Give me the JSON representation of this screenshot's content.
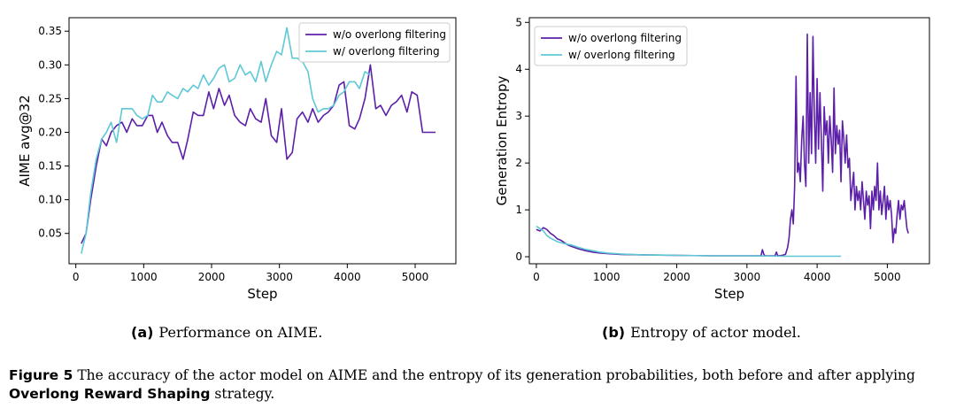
{
  "chart_data": [
    {
      "type": "line",
      "ylabel": "AIME avg@32",
      "xlabel": "Step",
      "xlim": [
        -100,
        5600
      ],
      "ylim": [
        0.005,
        0.37
      ],
      "xticks": [
        0,
        1000,
        2000,
        3000,
        4000,
        5000
      ],
      "yticks": [
        0.05,
        0.1,
        0.15,
        0.2,
        0.25,
        0.3,
        0.35
      ],
      "ytick_labels": [
        "0.05",
        "0.10",
        "0.15",
        "0.20",
        "0.25",
        "0.30",
        "0.35"
      ],
      "legend_loc": "top-right",
      "series": [
        {
          "name": "w/o overlong filtering",
          "color": "#5b1fa8",
          "x": [
            80,
            150,
            220,
            300,
            380,
            450,
            520,
            600,
            680,
            750,
            830,
            900,
            980,
            1060,
            1130,
            1200,
            1270,
            1350,
            1420,
            1500,
            1580,
            1650,
            1730,
            1800,
            1880,
            1960,
            2030,
            2110,
            2190,
            2260,
            2340,
            2420,
            2500,
            2570,
            2650,
            2730,
            2800,
            2880,
            2960,
            3030,
            3110,
            3190,
            3260,
            3340,
            3420,
            3490,
            3570,
            3650,
            3720,
            3800,
            3880,
            3950,
            4030,
            4110,
            4180,
            4260,
            4340,
            4420,
            4490,
            4570,
            4650,
            4720,
            4800,
            4880,
            4950,
            5030,
            5110,
            5180,
            5250,
            5300
          ],
          "y": [
            0.035,
            0.05,
            0.1,
            0.15,
            0.19,
            0.18,
            0.2,
            0.21,
            0.215,
            0.2,
            0.22,
            0.21,
            0.21,
            0.225,
            0.225,
            0.2,
            0.215,
            0.195,
            0.185,
            0.185,
            0.16,
            0.19,
            0.23,
            0.225,
            0.225,
            0.26,
            0.235,
            0.265,
            0.24,
            0.255,
            0.225,
            0.215,
            0.21,
            0.235,
            0.22,
            0.215,
            0.25,
            0.195,
            0.185,
            0.235,
            0.16,
            0.17,
            0.22,
            0.23,
            0.215,
            0.235,
            0.215,
            0.225,
            0.23,
            0.24,
            0.27,
            0.275,
            0.21,
            0.205,
            0.22,
            0.25,
            0.3,
            0.235,
            0.24,
            0.225,
            0.24,
            0.245,
            0.255,
            0.23,
            0.26,
            0.255,
            0.2,
            0.2,
            0.2,
            0.2
          ]
        },
        {
          "name": "w/ overlong filtering",
          "color": "#5ec8d6",
          "x": [
            80,
            150,
            220,
            300,
            380,
            450,
            520,
            600,
            680,
            750,
            830,
            900,
            980,
            1060,
            1130,
            1200,
            1270,
            1350,
            1420,
            1500,
            1580,
            1650,
            1730,
            1800,
            1880,
            1960,
            2030,
            2110,
            2190,
            2260,
            2340,
            2420,
            2500,
            2570,
            2650,
            2730,
            2800,
            2880,
            2960,
            3030,
            3110,
            3190,
            3260,
            3340,
            3420,
            3490,
            3570,
            3650,
            3720,
            3800,
            3880,
            3950,
            4030,
            4110,
            4180,
            4260,
            4340
          ],
          "y": [
            0.02,
            0.05,
            0.11,
            0.16,
            0.19,
            0.2,
            0.215,
            0.185,
            0.235,
            0.235,
            0.235,
            0.225,
            0.22,
            0.225,
            0.255,
            0.245,
            0.245,
            0.26,
            0.255,
            0.25,
            0.265,
            0.26,
            0.27,
            0.265,
            0.285,
            0.27,
            0.28,
            0.295,
            0.3,
            0.275,
            0.28,
            0.3,
            0.285,
            0.29,
            0.275,
            0.305,
            0.275,
            0.3,
            0.32,
            0.315,
            0.355,
            0.31,
            0.31,
            0.305,
            0.29,
            0.25,
            0.23,
            0.235,
            0.235,
            0.24,
            0.255,
            0.26,
            0.275,
            0.275,
            0.265,
            0.29,
            0.285
          ]
        }
      ]
    },
    {
      "type": "line",
      "ylabel": "Generation Entropy",
      "xlabel": "Step",
      "xlim": [
        -100,
        5600
      ],
      "ylim": [
        -0.15,
        5.1
      ],
      "xticks": [
        0,
        1000,
        2000,
        3000,
        4000,
        5000
      ],
      "yticks": [
        0,
        1,
        2,
        3,
        4,
        5
      ],
      "ytick_labels": [
        "0",
        "1",
        "2",
        "3",
        "4",
        "5"
      ],
      "legend_loc": "top-left",
      "series": [
        {
          "name": "w/o overlong filtering",
          "color": "#5b1fa8",
          "x": [
            0,
            50,
            100,
            150,
            200,
            250,
            300,
            350,
            400,
            450,
            500,
            600,
            700,
            800,
            900,
            1000,
            1200,
            1500,
            2000,
            2500,
            3000,
            3200,
            3220,
            3240,
            3260,
            3400,
            3420,
            3440,
            3500,
            3550,
            3580,
            3600,
            3620,
            3640,
            3660,
            3680,
            3700,
            3720,
            3740,
            3760,
            3780,
            3800,
            3820,
            3840,
            3860,
            3880,
            3900,
            3920,
            3940,
            3960,
            3980,
            4000,
            4020,
            4040,
            4060,
            4080,
            4100,
            4120,
            4140,
            4160,
            4180,
            4200,
            4220,
            4240,
            4260,
            4280,
            4300,
            4320,
            4340,
            4360,
            4380,
            4400,
            4420,
            4440,
            4460,
            4480,
            4500,
            4520,
            4540,
            4560,
            4580,
            4600,
            4620,
            4640,
            4660,
            4680,
            4700,
            4720,
            4740,
            4760,
            4780,
            4800,
            4820,
            4840,
            4860,
            4880,
            4900,
            4920,
            4940,
            4960,
            4980,
            5000,
            5020,
            5040,
            5060,
            5080,
            5100,
            5120,
            5140,
            5160,
            5180,
            5200,
            5220,
            5240,
            5260,
            5280,
            5300
          ],
          "y": [
            0.58,
            0.55,
            0.62,
            0.58,
            0.5,
            0.45,
            0.38,
            0.35,
            0.3,
            0.25,
            0.22,
            0.17,
            0.13,
            0.1,
            0.08,
            0.07,
            0.05,
            0.04,
            0.03,
            0.02,
            0.02,
            0.02,
            0.15,
            0.05,
            0.02,
            0.02,
            0.1,
            0.02,
            0.03,
            0.05,
            0.2,
            0.4,
            0.8,
            1.0,
            0.7,
            1.5,
            3.85,
            1.8,
            2.0,
            1.6,
            2.5,
            3.0,
            2.0,
            1.5,
            4.75,
            2.0,
            3.5,
            2.2,
            4.7,
            3.0,
            2.0,
            3.8,
            2.3,
            3.5,
            2.5,
            1.4,
            3.2,
            2.6,
            2.9,
            2.0,
            3.0,
            2.5,
            1.8,
            3.6,
            2.2,
            2.8,
            2.4,
            2.7,
            1.6,
            2.9,
            2.5,
            2.0,
            2.6,
            1.9,
            2.1,
            1.2,
            1.5,
            1.8,
            1.0,
            1.5,
            1.2,
            1.4,
            1.0,
            1.6,
            1.2,
            0.8,
            1.4,
            1.1,
            1.3,
            0.6,
            1.4,
            1.0,
            1.5,
            1.2,
            2.0,
            1.0,
            1.4,
            0.9,
            1.2,
            1.5,
            0.8,
            1.3,
            1.0,
            1.2,
            0.9,
            0.3,
            0.6,
            0.5,
            0.9,
            1.2,
            0.8,
            1.1,
            1.0,
            1.2,
            0.9,
            0.6,
            0.5
          ]
        },
        {
          "name": "w/ overlong filtering",
          "color": "#5ec8d6",
          "x": [
            0,
            50,
            100,
            150,
            200,
            300,
            400,
            500,
            600,
            700,
            800,
            900,
            1000,
            1200,
            1500,
            2000,
            2500,
            3000,
            3500,
            4000,
            4340
          ],
          "y": [
            0.65,
            0.6,
            0.55,
            0.45,
            0.4,
            0.32,
            0.28,
            0.25,
            0.2,
            0.16,
            0.13,
            0.1,
            0.08,
            0.06,
            0.04,
            0.03,
            0.02,
            0.02,
            0.01,
            0.01,
            0.01
          ]
        }
      ]
    }
  ],
  "subcaptions": [
    {
      "letter": "(a)",
      "text": "Performance on AIME."
    },
    {
      "letter": "(b)",
      "text": "Entropy of actor model."
    }
  ],
  "caption": {
    "label": "Figure 5",
    "text1": "The accuracy of the actor model on AIME and the entropy of its generation probabilities, both before and after applying ",
    "bold": "Overlong Reward Shaping",
    "text2": " strategy."
  }
}
